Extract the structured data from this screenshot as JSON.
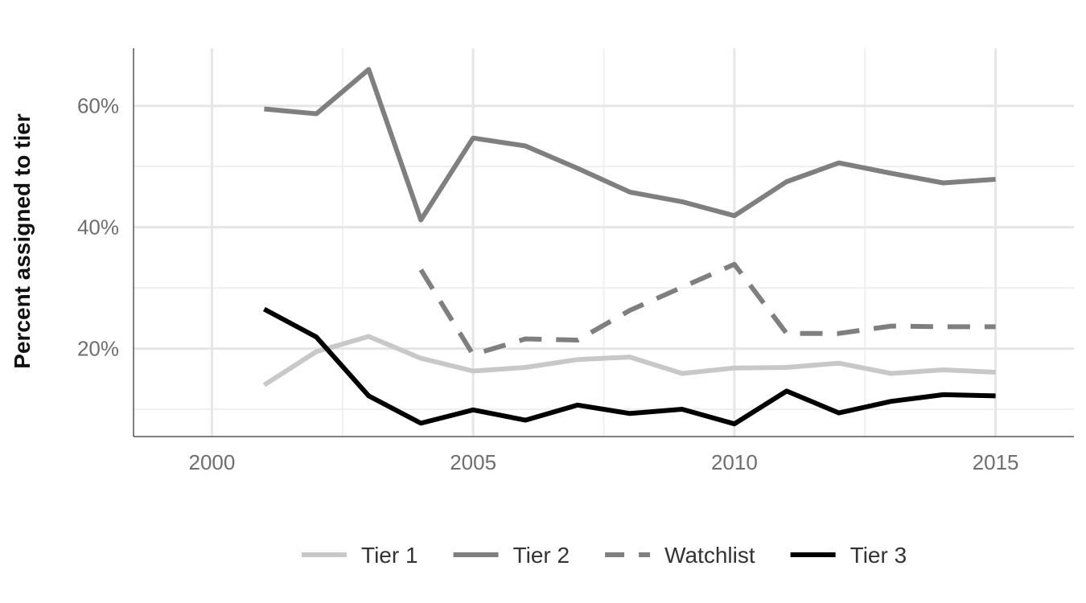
{
  "chart_data": {
    "type": "line",
    "ylabel": "Percent assigned to tier",
    "xlim": [
      1998.5,
      2016.5
    ],
    "ylim": [
      5.5,
      69.5
    ],
    "x_ticks": [
      {
        "value": 2000,
        "label": "2000"
      },
      {
        "value": 2005,
        "label": "2005"
      },
      {
        "value": 2010,
        "label": "2010"
      },
      {
        "value": 2015,
        "label": "2015"
      }
    ],
    "y_ticks": [
      {
        "value": 20,
        "label": "20%"
      },
      {
        "value": 40,
        "label": "40%"
      },
      {
        "value": 60,
        "label": "60%"
      }
    ],
    "x_minor_gridlines": [
      2002.5,
      2007.5,
      2012.5
    ],
    "y_minor_gridlines": [
      10,
      30,
      50
    ],
    "grid": true,
    "legend_position": "bottom",
    "series": [
      {
        "name": "Tier 1",
        "color": "#c8c8c8",
        "dash": "solid",
        "points": [
          [
            2001,
            14.0
          ],
          [
            2002,
            19.5
          ],
          [
            2003,
            22.0
          ],
          [
            2004,
            18.4
          ],
          [
            2005,
            16.3
          ],
          [
            2006,
            16.9
          ],
          [
            2007,
            18.2
          ],
          [
            2008,
            18.6
          ],
          [
            2009,
            15.9
          ],
          [
            2010,
            16.8
          ],
          [
            2011,
            16.9
          ],
          [
            2012,
            17.6
          ],
          [
            2013,
            15.9
          ],
          [
            2014,
            16.5
          ],
          [
            2015,
            16.1
          ]
        ]
      },
      {
        "name": "Tier 2",
        "color": "#7f7f7f",
        "dash": "solid",
        "points": [
          [
            2001,
            59.5
          ],
          [
            2002,
            58.7
          ],
          [
            2003,
            66.0
          ],
          [
            2004,
            41.2
          ],
          [
            2005,
            54.7
          ],
          [
            2006,
            53.4
          ],
          [
            2007,
            49.7
          ],
          [
            2008,
            45.8
          ],
          [
            2009,
            44.2
          ],
          [
            2010,
            41.9
          ],
          [
            2011,
            47.5
          ],
          [
            2012,
            50.6
          ],
          [
            2013,
            48.9
          ],
          [
            2014,
            47.3
          ],
          [
            2015,
            47.9
          ]
        ]
      },
      {
        "name": "Watchlist",
        "color": "#7f7f7f",
        "dash": "dashed",
        "points": [
          [
            2004,
            33.0
          ],
          [
            2005,
            19.0
          ],
          [
            2006,
            21.6
          ],
          [
            2007,
            21.4
          ],
          [
            2008,
            26.3
          ],
          [
            2009,
            30.1
          ],
          [
            2010,
            33.9
          ],
          [
            2011,
            22.5
          ],
          [
            2012,
            22.5
          ],
          [
            2013,
            23.7
          ],
          [
            2014,
            23.6
          ],
          [
            2015,
            23.6
          ]
        ]
      },
      {
        "name": "Tier 3",
        "color": "#000000",
        "dash": "solid",
        "points": [
          [
            2001,
            26.5
          ],
          [
            2002,
            21.9
          ],
          [
            2003,
            12.2
          ],
          [
            2004,
            7.7
          ],
          [
            2005,
            9.9
          ],
          [
            2006,
            8.2
          ],
          [
            2007,
            10.7
          ],
          [
            2008,
            9.3
          ],
          [
            2009,
            10.0
          ],
          [
            2010,
            7.6
          ],
          [
            2011,
            13.0
          ],
          [
            2012,
            9.4
          ],
          [
            2013,
            11.3
          ],
          [
            2014,
            12.4
          ],
          [
            2015,
            12.2
          ]
        ]
      }
    ]
  }
}
